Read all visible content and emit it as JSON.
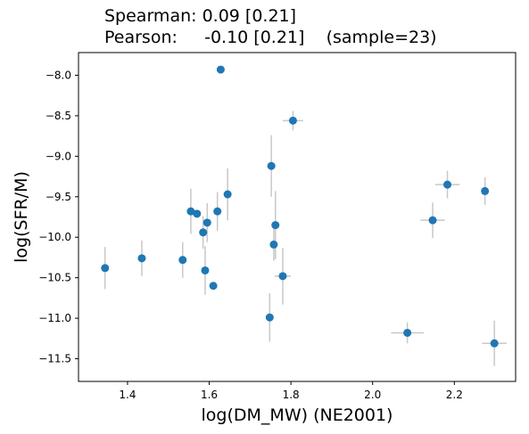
{
  "chart_data": {
    "type": "scatter",
    "title_lines": [
      "Spearman: 0.09 [0.21]",
      "Pearson:     -0.10 [0.21]    (sample=23)"
    ],
    "xlabel": "log(DM_MW) (NE2001)",
    "ylabel": "log(SFR/M)",
    "xlim": [
      1.28,
      2.35
    ],
    "ylim": [
      -11.78,
      -7.72
    ],
    "xticks": [
      1.4,
      1.6,
      1.8,
      2.0,
      2.2
    ],
    "xtick_labels": [
      "1.4",
      "1.6",
      "1.8",
      "2.0",
      "2.2"
    ],
    "yticks": [
      -8.0,
      -8.5,
      -9.0,
      -9.5,
      -10.0,
      -10.5,
      -11.0,
      -11.5
    ],
    "ytick_labels": [
      "−8.0",
      "−8.5",
      "−9.0",
      "−9.5",
      "−10.0",
      "−10.5",
      "−11.0",
      "−11.5"
    ],
    "grid": false,
    "marker_color": "#1f77b4",
    "errorbar_color": "#c8c8c8",
    "points": [
      {
        "x": 1.345,
        "y": -10.38,
        "xerr": 0.0,
        "yerr": 0.26
      },
      {
        "x": 1.435,
        "y": -10.26,
        "xerr": 0.0,
        "yerr": 0.22
      },
      {
        "x": 1.535,
        "y": -10.28,
        "xerr": 0.0,
        "yerr": 0.22
      },
      {
        "x": 1.555,
        "y": -9.68,
        "xerr": 0.0,
        "yerr": 0.28
      },
      {
        "x": 1.57,
        "y": -9.71,
        "xerr": 0.0,
        "yerr": 0.0
      },
      {
        "x": 1.585,
        "y": -9.94,
        "xerr": 0.0,
        "yerr": 0.2
      },
      {
        "x": 1.59,
        "y": -10.41,
        "xerr": 0.0,
        "yerr": 0.3
      },
      {
        "x": 1.595,
        "y": -9.82,
        "xerr": 0.0,
        "yerr": 0.24
      },
      {
        "x": 1.61,
        "y": -10.6,
        "xerr": 0.0,
        "yerr": 0.0
      },
      {
        "x": 1.62,
        "y": -9.68,
        "xerr": 0.0,
        "yerr": 0.24
      },
      {
        "x": 1.628,
        "y": -7.93,
        "xerr": 0.0,
        "yerr": 0.0
      },
      {
        "x": 1.645,
        "y": -9.47,
        "xerr": 0.0,
        "yerr": 0.32
      },
      {
        "x": 1.748,
        "y": -10.99,
        "xerr": 0.0,
        "yerr": 0.3
      },
      {
        "x": 1.752,
        "y": -9.12,
        "xerr": 0.01,
        "yerr": 0.38
      },
      {
        "x": 1.758,
        "y": -10.09,
        "xerr": 0.0,
        "yerr": 0.2
      },
      {
        "x": 1.762,
        "y": -9.85,
        "xerr": 0.0,
        "yerr": 0.42
      },
      {
        "x": 1.78,
        "y": -10.48,
        "xerr": 0.02,
        "yerr": 0.35
      },
      {
        "x": 1.805,
        "y": -8.56,
        "xerr": 0.025,
        "yerr": 0.12
      },
      {
        "x": 2.085,
        "y": -11.18,
        "xerr": 0.04,
        "yerr": 0.13
      },
      {
        "x": 2.147,
        "y": -9.79,
        "xerr": 0.03,
        "yerr": 0.22
      },
      {
        "x": 2.183,
        "y": -9.35,
        "xerr": 0.03,
        "yerr": 0.17
      },
      {
        "x": 2.275,
        "y": -9.43,
        "xerr": 0.0,
        "yerr": 0.17
      },
      {
        "x": 2.298,
        "y": -11.31,
        "xerr": 0.03,
        "yerr": 0.28
      }
    ]
  }
}
